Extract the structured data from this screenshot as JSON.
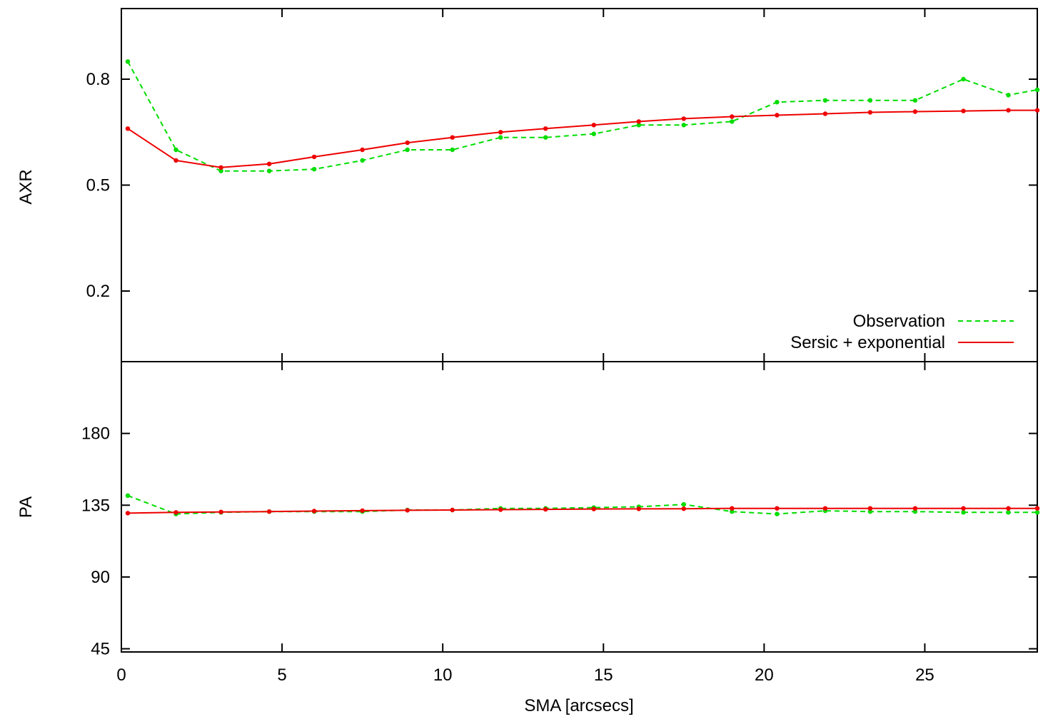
{
  "chart_data": [
    {
      "type": "line",
      "ylabel": "AXR",
      "ylim": [
        0.0,
        1.0
      ],
      "yticks": [
        0.2,
        0.5,
        0.8
      ],
      "ytick_labels": [
        "0.2",
        "0.5",
        "0.8"
      ],
      "xlim": [
        0,
        28.5
      ],
      "legend": "bottom-right",
      "series": [
        {
          "name": "Observation",
          "color": "#00dd00",
          "style": "dashed",
          "markers": true,
          "x": [
            0.2,
            1.7,
            3.1,
            4.6,
            6.0,
            7.5,
            8.9,
            10.3,
            11.8,
            13.2,
            14.7,
            16.1,
            17.5,
            19.0,
            20.4,
            21.9,
            23.3,
            24.7,
            26.2,
            27.6,
            28.5
          ],
          "y": [
            0.85,
            0.6,
            0.54,
            0.54,
            0.545,
            0.57,
            0.6,
            0.6,
            0.635,
            0.635,
            0.645,
            0.67,
            0.67,
            0.68,
            0.735,
            0.74,
            0.74,
            0.74,
            0.8,
            0.755,
            0.77
          ]
        },
        {
          "name": "Sersic + exponential",
          "color": "#ee0000",
          "style": "solid",
          "markers": true,
          "x": [
            0.2,
            1.7,
            3.1,
            4.6,
            6.0,
            7.5,
            8.9,
            10.3,
            11.8,
            13.2,
            14.7,
            16.1,
            17.5,
            19.0,
            20.4,
            21.9,
            23.3,
            24.7,
            26.2,
            27.6,
            28.5
          ],
          "y": [
            0.66,
            0.57,
            0.55,
            0.56,
            0.58,
            0.6,
            0.62,
            0.635,
            0.65,
            0.66,
            0.67,
            0.68,
            0.688,
            0.694,
            0.698,
            0.702,
            0.706,
            0.708,
            0.71,
            0.712,
            0.712
          ]
        }
      ]
    },
    {
      "type": "line",
      "ylabel": "PA",
      "xlabel": "SMA [arcsecs]",
      "ylim": [
        43,
        225
      ],
      "yticks": [
        45,
        90,
        135,
        180
      ],
      "ytick_labels": [
        "45",
        "90",
        "135",
        "180"
      ],
      "xlim": [
        0,
        28.5
      ],
      "xticks": [
        0,
        5,
        10,
        15,
        20,
        25
      ],
      "xtick_labels": [
        "0",
        "5",
        "10",
        "15",
        "20",
        "25"
      ],
      "series": [
        {
          "name": "Observation",
          "color": "#00dd00",
          "style": "dashed",
          "markers": true,
          "x": [
            0.2,
            1.7,
            3.1,
            4.6,
            6.0,
            7.5,
            8.9,
            10.3,
            11.8,
            13.2,
            14.7,
            16.1,
            17.5,
            19.0,
            20.4,
            21.9,
            23.3,
            24.7,
            26.2,
            27.6,
            28.5
          ],
          "y": [
            141,
            129.5,
            130.5,
            131,
            131,
            131,
            132,
            132,
            133,
            133,
            133.5,
            134,
            135.5,
            131,
            129.5,
            131.5,
            131,
            131,
            130.5,
            130.5,
            130.5
          ]
        },
        {
          "name": "Sersic + exponential",
          "color": "#ee0000",
          "style": "solid",
          "markers": true,
          "x": [
            0.2,
            1.7,
            3.1,
            4.6,
            6.0,
            7.5,
            8.9,
            10.3,
            11.8,
            13.2,
            14.7,
            16.1,
            17.5,
            19.0,
            20.4,
            21.9,
            23.3,
            24.7,
            26.2,
            27.6,
            28.5
          ],
          "y": [
            130,
            130.5,
            130.8,
            131,
            131.3,
            131.6,
            131.8,
            132,
            132.2,
            132.4,
            132.6,
            132.7,
            132.8,
            133,
            133,
            133,
            133,
            133,
            133,
            133,
            133
          ]
        }
      ]
    }
  ]
}
